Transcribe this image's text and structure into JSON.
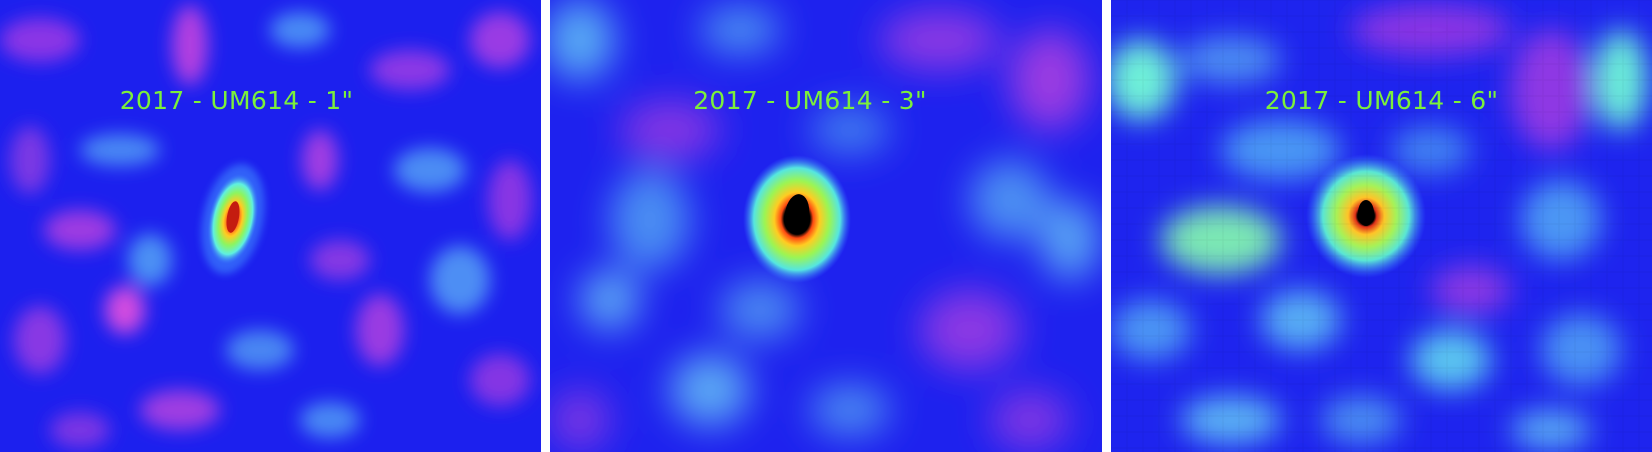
{
  "panels": [
    {
      "label": "2017 - UM614 - 1\""
    },
    {
      "label": "2017 - UM614 - 3\""
    },
    {
      "label": "2017 - UM614 - 6\""
    }
  ],
  "colors": {
    "background": "#1a1cf2",
    "label": "#7cf03a",
    "peak": "#000000",
    "separator": "#ffffff"
  }
}
